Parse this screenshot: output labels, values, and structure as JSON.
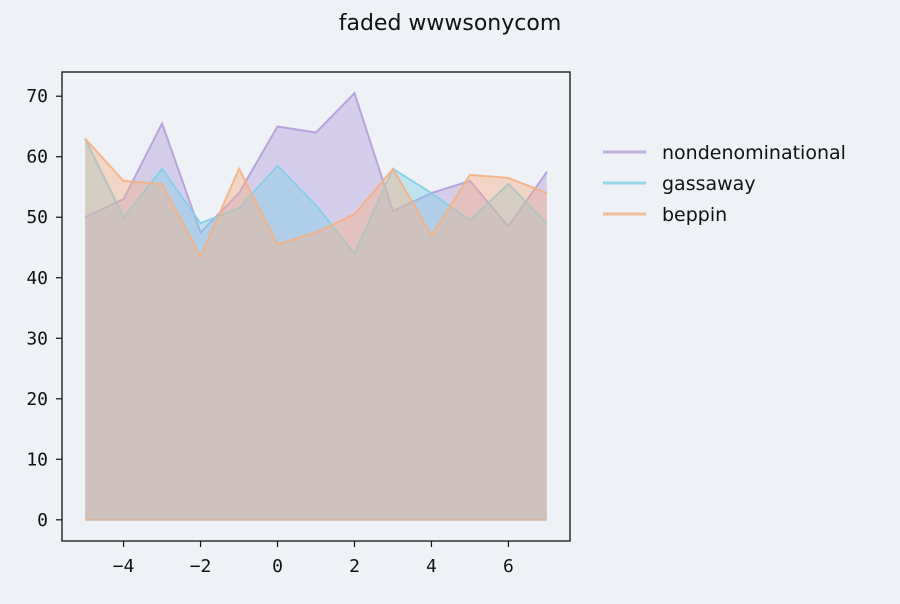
{
  "chart_data": {
    "type": "area",
    "title": "faded wwwsonycom",
    "xlabel": "",
    "ylabel": "",
    "x": [
      -5,
      -4,
      -3,
      -2,
      -1,
      0,
      1,
      2,
      3,
      4,
      5,
      6,
      7
    ],
    "xlim": [
      -5.6,
      7.6
    ],
    "ylim": [
      -3.5,
      74
    ],
    "xticks": [
      -4,
      -2,
      0,
      2,
      4,
      6
    ],
    "xtick_labels": [
      "−4",
      "−2",
      "0",
      "2",
      "4",
      "6"
    ],
    "yticks": [
      0,
      10,
      20,
      30,
      40,
      50,
      60,
      70
    ],
    "ytick_labels": [
      "0",
      "10",
      "20",
      "30",
      "40",
      "50",
      "60",
      "70"
    ],
    "grid": false,
    "legend_position": "right",
    "stacked": false,
    "series": [
      {
        "name": "nondenominational",
        "color": "#b39ddb",
        "values": [
          50,
          53,
          65.5,
          47.5,
          54,
          65,
          64,
          70.5,
          51,
          54,
          56,
          48.5,
          57.5
        ]
      },
      {
        "name": "gassaway",
        "color": "#80d0e8",
        "values": [
          63,
          50,
          58,
          49,
          51.5,
          58.5,
          52,
          44,
          58,
          54,
          49.5,
          55.5,
          49
        ]
      },
      {
        "name": "beppin",
        "color": "#f5b083",
        "values": [
          63,
          56,
          55.5,
          43.5,
          58,
          45.5,
          47.5,
          50.5,
          58,
          47,
          57,
          56.5,
          54
        ]
      }
    ]
  }
}
